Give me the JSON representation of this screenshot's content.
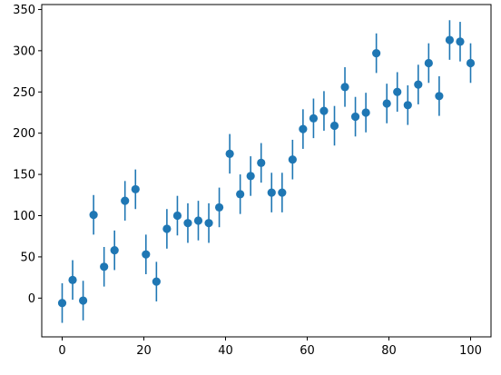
{
  "chart_data": {
    "type": "scatter",
    "title": "",
    "xlabel": "",
    "ylabel": "",
    "xlim": [
      -5,
      105
    ],
    "ylim": [
      -47,
      356
    ],
    "grid": false,
    "legend": "none",
    "color": "#1f77b4",
    "error_bar_halfwidth": 24,
    "x_ticks": [
      0,
      20,
      40,
      60,
      80,
      100
    ],
    "x_tick_labels": [
      "0",
      "20",
      "40",
      "60",
      "80",
      "100"
    ],
    "y_ticks": [
      0,
      50,
      100,
      150,
      200,
      250,
      300,
      350
    ],
    "y_tick_labels": [
      "0",
      "50",
      "100",
      "150",
      "200",
      "250",
      "300",
      "350"
    ],
    "x": [
      0.0,
      2.56,
      5.13,
      7.69,
      10.26,
      12.82,
      15.38,
      17.95,
      20.51,
      23.08,
      25.64,
      28.21,
      30.77,
      33.33,
      35.9,
      38.46,
      41.03,
      43.59,
      46.15,
      48.72,
      51.28,
      53.85,
      56.41,
      58.97,
      61.54,
      64.1,
      66.67,
      69.23,
      71.79,
      74.36,
      76.92,
      79.49,
      82.05,
      84.62,
      87.18,
      89.74,
      92.31,
      94.87,
      97.44,
      100.0
    ],
    "y": [
      -6,
      22,
      -3,
      101,
      38,
      58,
      118,
      132,
      53,
      20,
      84,
      100,
      91,
      94,
      91,
      110,
      175,
      126,
      148,
      164,
      128,
      128,
      168,
      205,
      218,
      227,
      209,
      256,
      220,
      225,
      297,
      236,
      250,
      234,
      259,
      285,
      245,
      313,
      311,
      285
    ]
  }
}
